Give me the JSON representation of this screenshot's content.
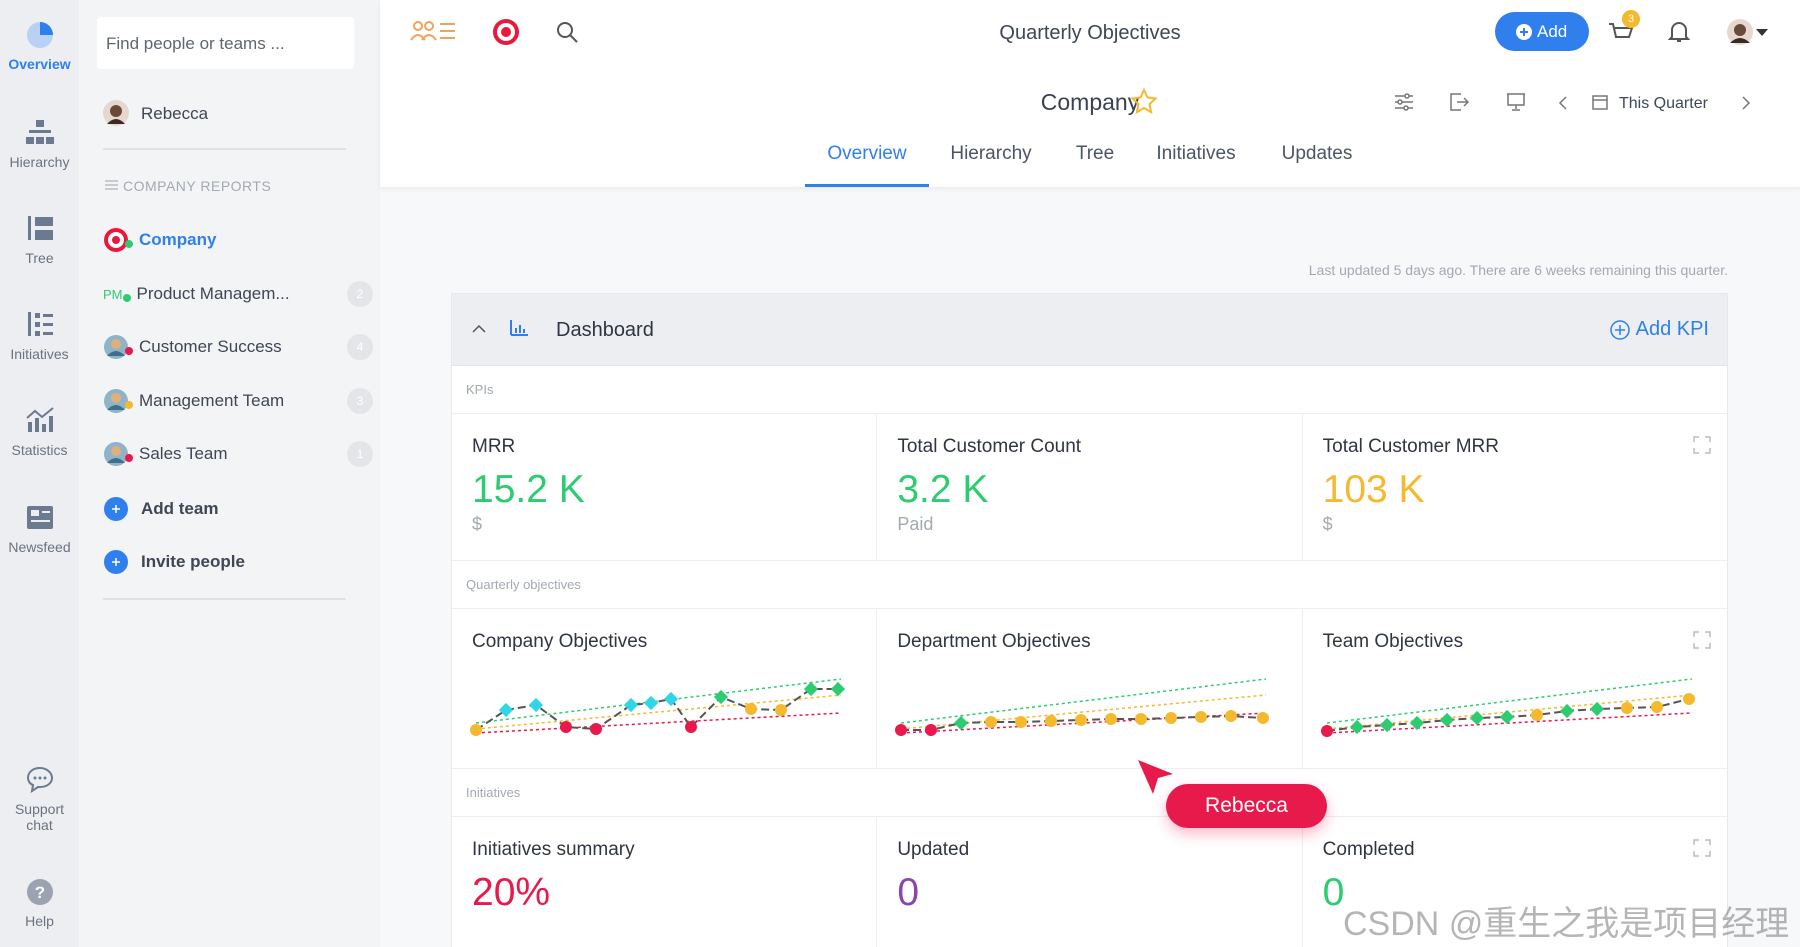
{
  "rail": {
    "items": [
      "Overview",
      "Hierarchy",
      "Tree",
      "Initiatives",
      "Statistics",
      "Newsfeed"
    ],
    "bottom": [
      "Support chat",
      "Help"
    ]
  },
  "sidebar": {
    "search": "Find people or teams ...",
    "user": "Rebecca",
    "section_title": "COMPANY REPORTS",
    "teams": [
      {
        "name": "Company",
        "status": "#2ecc71"
      },
      {
        "badge": "PM",
        "name": "Product Managem...",
        "status": "#2ecc71",
        "count": "2"
      },
      {
        "name": "Customer Success",
        "status": "#e8194b",
        "count": "4"
      },
      {
        "name": "Management Team",
        "status": "#f5b92e",
        "count": "3"
      },
      {
        "name": "Sales Team",
        "status": "#e8194b",
        "count": "1"
      }
    ],
    "actions": [
      "Add team",
      "Invite people"
    ]
  },
  "topbar": {
    "title": "Quarterly Objectives",
    "add_button": "Add",
    "cart_badge": "3"
  },
  "header": {
    "title": "Company",
    "period": "This Quarter",
    "tabs": [
      "Overview",
      "Hierarchy",
      "Tree",
      "Initiatives",
      "Updates"
    ]
  },
  "dashboard": {
    "note": "Last updated 5 days ago. There are 6 weeks remaining this quarter.",
    "title": "Dashboard",
    "add_kpi": "Add KPI",
    "sections": [
      {
        "label": "KPIs",
        "cards": [
          {
            "title": "MRR",
            "value": "15.2 K",
            "unit": "$",
            "color": "#2ecc71"
          },
          {
            "title": "Total Customer Count",
            "value": "3.2 K",
            "unit": "Paid",
            "color": "#2ecc71"
          },
          {
            "title": "Total Customer MRR",
            "value": "103 K",
            "unit": "$",
            "color": "#f5b92e"
          }
        ]
      },
      {
        "label": "Quarterly objectives",
        "cards": [
          {
            "title": "Company Objectives"
          },
          {
            "title": "Department Objectives"
          },
          {
            "title": "Team Objectives"
          }
        ]
      },
      {
        "label": "Initiatives",
        "cards": [
          {
            "title": "Initiatives summary",
            "value": "20%",
            "color": "#e8194b"
          },
          {
            "title": "Updated",
            "value": "0",
            "color": "#8e44ad"
          },
          {
            "title": "Completed",
            "value": "0",
            "color": "#2ecc71"
          }
        ]
      }
    ]
  },
  "cursor": {
    "label": "Rebecca"
  },
  "watermark": "CSDN @重生之我是项目经理"
}
